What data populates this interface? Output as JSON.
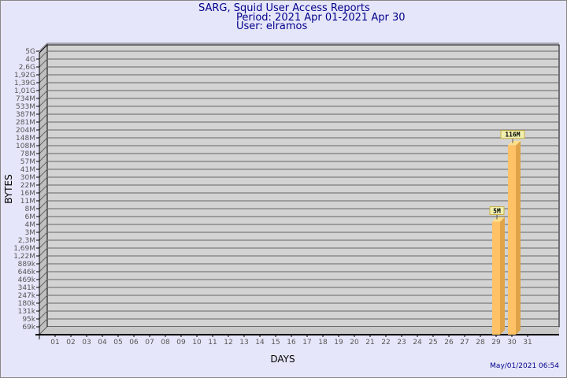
{
  "chart_data": {
    "type": "bar",
    "title": "SARG, Squid User Access Reports",
    "subtitle": "Period: 2021 Apr 01-2021 Apr 30",
    "user_line": "User: elramos",
    "xlabel": "DAYS",
    "ylabel": "BYTES",
    "y_scale": "log-like (non-uniform)",
    "y_ticks": [
      "5G",
      "4G",
      "2,6G",
      "1,92G",
      "1,39G",
      "1,01G",
      "734M",
      "533M",
      "387M",
      "281M",
      "204M",
      "148M",
      "108M",
      "78M",
      "57M",
      "41M",
      "30M",
      "22M",
      "16M",
      "11M",
      "8M",
      "6M",
      "4M",
      "3M",
      "2,3M",
      "1,69M",
      "1,22M",
      "889k",
      "646k",
      "469k",
      "341k",
      "247k",
      "180k",
      "131k",
      "95k",
      "69k"
    ],
    "y_tick_values": [
      5000000000.0,
      4000000000.0,
      2600000000.0,
      1920000000.0,
      1390000000.0,
      1010000000.0,
      734000000.0,
      533000000.0,
      387000000.0,
      281000000.0,
      204000000.0,
      148000000.0,
      108000000.0,
      78000000.0,
      57000000.0,
      41000000.0,
      30000000.0,
      22000000.0,
      16000000.0,
      11000000.0,
      8000000.0,
      6000000.0,
      4000000.0,
      3000000.0,
      2300000.0,
      1690000.0,
      1220000.0,
      889000.0,
      646000.0,
      469000.0,
      341000.0,
      247000.0,
      180000.0,
      131000.0,
      95000.0,
      69000.0
    ],
    "categories": [
      "01",
      "02",
      "03",
      "04",
      "05",
      "06",
      "07",
      "08",
      "09",
      "10",
      "11",
      "12",
      "13",
      "14",
      "15",
      "16",
      "17",
      "18",
      "19",
      "20",
      "21",
      "22",
      "23",
      "24",
      "25",
      "26",
      "27",
      "28",
      "29",
      "30",
      "31"
    ],
    "bars": [
      {
        "day": "29",
        "value": 5000000,
        "label": "5M"
      },
      {
        "day": "30",
        "value": 116000000,
        "label": "116M"
      }
    ],
    "grid": true,
    "colors": {
      "bar_front": "#ffc266",
      "bar_side": "#e0a448",
      "bar_top": "#ffe08a",
      "plot_bg": "#d3d3d3",
      "label_bg": "#f0f0b0",
      "title": "#00008b"
    }
  },
  "timestamp": "May/01/2021 06:54"
}
